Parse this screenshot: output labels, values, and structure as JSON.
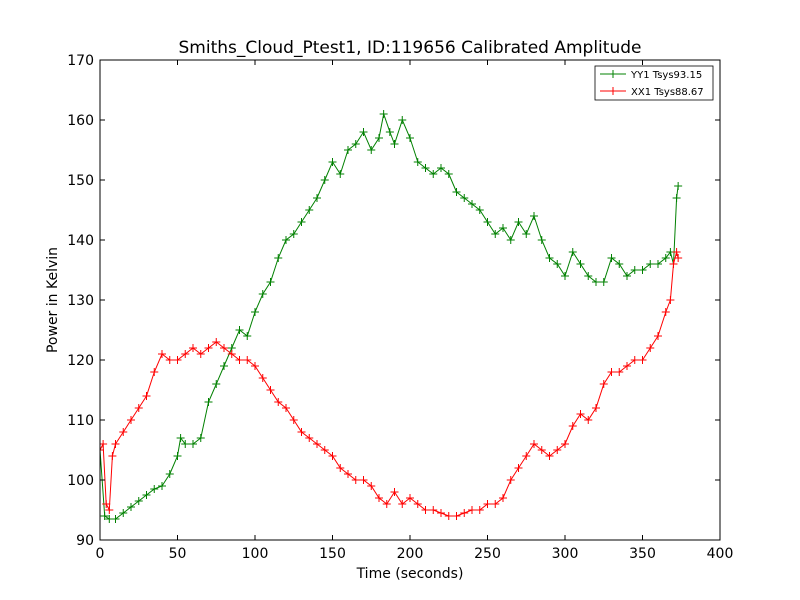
{
  "chart_data": {
    "type": "line",
    "title": "Smiths_Cloud_Ptest1, ID:119656 Calibrated Amplitude",
    "xlabel": "Time (seconds)",
    "ylabel": "Power in Kelvin",
    "xlim": [
      0,
      400
    ],
    "ylim": [
      90,
      170
    ],
    "xticks": [
      0,
      50,
      100,
      150,
      200,
      250,
      300,
      350,
      400
    ],
    "yticks": [
      90,
      100,
      110,
      120,
      130,
      140,
      150,
      160,
      170
    ],
    "xtick_labels": [
      "0",
      "50",
      "100",
      "150",
      "200",
      "250",
      "300",
      "350",
      "400"
    ],
    "ytick_labels": [
      "90",
      "100",
      "110",
      "120",
      "130",
      "140",
      "150",
      "160",
      "170"
    ],
    "grid": false,
    "legend_position": "top-right",
    "series": [
      {
        "name": "YY1 Tsys93.15",
        "color": "#008000",
        "marker": "+",
        "x": [
          0,
          3,
          6,
          10,
          15,
          20,
          25,
          30,
          35,
          40,
          45,
          50,
          52,
          55,
          60,
          65,
          70,
          75,
          80,
          85,
          90,
          95,
          100,
          105,
          110,
          115,
          120,
          125,
          130,
          135,
          140,
          145,
          150,
          155,
          160,
          165,
          170,
          175,
          180,
          183,
          187,
          190,
          195,
          200,
          205,
          210,
          215,
          220,
          225,
          230,
          235,
          240,
          245,
          250,
          255,
          260,
          265,
          270,
          275,
          280,
          285,
          290,
          295,
          300,
          305,
          310,
          315,
          320,
          325,
          330,
          335,
          340,
          345,
          350,
          355,
          360,
          365,
          368,
          370,
          372,
          373
        ],
        "y": [
          105,
          94,
          93.5,
          93.5,
          94.5,
          95.5,
          96.5,
          97.5,
          98.5,
          99,
          101,
          104,
          107,
          106,
          106,
          107,
          113,
          116,
          119,
          122,
          125,
          124,
          128,
          131,
          133,
          137,
          140,
          141,
          143,
          145,
          147,
          150,
          153,
          151,
          155,
          156,
          158,
          155,
          157,
          161,
          158,
          156,
          160,
          157,
          153,
          152,
          151,
          152,
          151,
          148,
          147,
          146,
          145,
          143,
          141,
          142,
          140,
          143,
          141,
          144,
          140,
          137,
          136,
          134,
          138,
          136,
          134,
          133,
          133,
          137,
          136,
          134,
          135,
          135,
          136,
          136,
          137,
          138,
          136,
          147,
          149
        ]
      },
      {
        "name": "XX1 Tsys88.67",
        "color": "#ff0000",
        "marker": "+",
        "x": [
          0,
          2,
          4,
          6,
          8,
          10,
          15,
          20,
          25,
          30,
          35,
          40,
          45,
          50,
          55,
          60,
          65,
          70,
          75,
          80,
          85,
          90,
          95,
          100,
          105,
          110,
          115,
          120,
          125,
          130,
          135,
          140,
          145,
          150,
          155,
          160,
          165,
          170,
          175,
          180,
          185,
          190,
          195,
          200,
          205,
          210,
          215,
          220,
          225,
          230,
          235,
          240,
          245,
          250,
          255,
          260,
          265,
          270,
          275,
          280,
          285,
          290,
          295,
          300,
          305,
          310,
          315,
          320,
          325,
          330,
          335,
          340,
          345,
          350,
          355,
          360,
          365,
          368,
          370,
          372,
          373
        ],
        "y": [
          105,
          106,
          96,
          95,
          104,
          106,
          108,
          110,
          112,
          114,
          118,
          121,
          120,
          120,
          121,
          122,
          121,
          122,
          123,
          122,
          121,
          120,
          120,
          119,
          117,
          115,
          113,
          112,
          110,
          108,
          107,
          106,
          105,
          104,
          102,
          101,
          100,
          100,
          99,
          97,
          96,
          98,
          96,
          97,
          96,
          95,
          95,
          94.5,
          94,
          94,
          94.5,
          95,
          95,
          96,
          96,
          97,
          100,
          102,
          104,
          106,
          105,
          104,
          105,
          106,
          109,
          111,
          110,
          112,
          116,
          118,
          118,
          119,
          120,
          120,
          122,
          124,
          128,
          130,
          136,
          138,
          137
        ]
      }
    ]
  }
}
